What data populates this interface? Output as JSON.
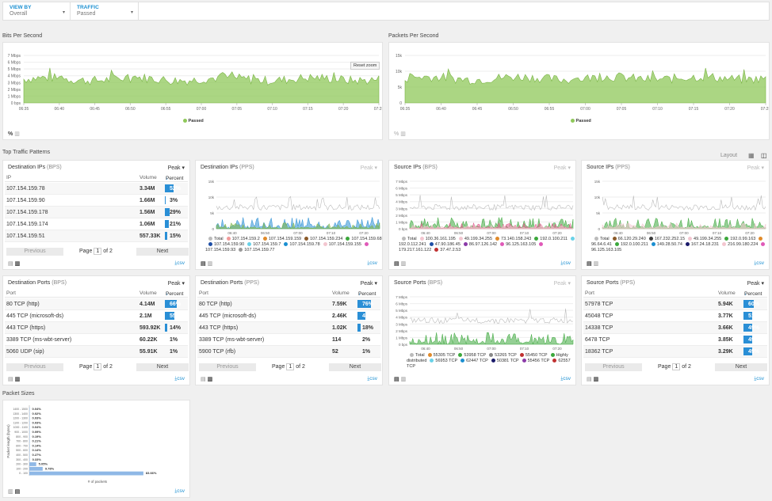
{
  "filters": [
    {
      "label": "VIEW BY",
      "value": "Overall"
    },
    {
      "label": "TRAFFIC",
      "value": "Passed"
    }
  ],
  "sections": {
    "top": "Top Traffic Patterns",
    "packet_sizes": "Packet Sizes",
    "layout": "Layout"
  },
  "bps_chart": {
    "title": "Bits Per Second",
    "y_ticks": [
      "7 Mbps",
      "6 Mbps",
      "5 Mbps",
      "4 Mbps",
      "3 Mbps",
      "2 Mbps",
      "1 Mbps",
      "0 bps"
    ],
    "x_ticks": [
      "06:35",
      "06:40",
      "06:45",
      "06:50",
      "06:55",
      "07:00",
      "07:05",
      "07:10",
      "07:15",
      "07:20",
      "07:25"
    ],
    "legend": "Passed",
    "reset": "Reset zoom",
    "color": "#8fc85a"
  },
  "pps_chart": {
    "title": "Packets Per Second",
    "y_ticks": [
      "15k",
      "10k",
      "5k",
      "0"
    ],
    "x_ticks": [
      "06:35",
      "06:40",
      "06:45",
      "06:50",
      "06:55",
      "07:00",
      "07:05",
      "07:10",
      "07:15",
      "07:20",
      "07:25"
    ],
    "legend": "Passed",
    "color": "#8fc85a"
  },
  "footer_icons": {
    "percent": "%",
    "chart": "bar-chart-icon",
    "table": "table-icon"
  },
  "csv": "csv",
  "pager": {
    "previous": "Previous",
    "next": "Next",
    "page": "Page",
    "of": "of 2",
    "current": "1"
  },
  "dest_ips_bps": {
    "title": "Destination IPs",
    "unit": "(BPS)",
    "peak": "Peak",
    "col_ip": "IP",
    "col_vol": "Volume",
    "col_pct": "Percent",
    "rows": [
      {
        "ip": "107.154.159.78",
        "vol": "3.34M",
        "pct": "52%",
        "frac": 0.52
      },
      {
        "ip": "107.154.159.90",
        "vol": "1.66M",
        "pct": "3%",
        "frac": 0.03
      },
      {
        "ip": "107.154.159.178",
        "vol": "1.56M",
        "pct": "29%",
        "frac": 0.29
      },
      {
        "ip": "107.154.159.174",
        "vol": "1.06M",
        "pct": "21%",
        "frac": 0.21
      },
      {
        "ip": "107.154.159.51",
        "vol": "557.33K",
        "pct": "15%",
        "frac": 0.15
      }
    ]
  },
  "dest_ips_pps": {
    "title": "Destination IPs",
    "unit": "(PPS)",
    "peak": "Peak",
    "y_ticks": [
      "15k",
      "10k",
      "5k",
      "0"
    ],
    "x_ticks": [
      "06:40",
      "06:50",
      "07:00",
      "07:10",
      "07:20"
    ],
    "legend": [
      "Total",
      "107.154.159.2",
      "107.154.159.159",
      "107.154.159.234",
      "107.154.159.68",
      "107.154.159.90",
      "107.154.159.7",
      "107.154.159.78",
      "107.154.159.155",
      "107.154.159.93",
      "107.154.159.77"
    ]
  },
  "src_ips_bps": {
    "title": "Source IPs",
    "unit": "(BPS)",
    "peak": "Peak",
    "y_ticks": [
      "7 Mbps",
      "6 Mbps",
      "5 Mbps",
      "4 Mbps",
      "3 Mbps",
      "2 Mbps",
      "1 Mbps",
      "0 bps"
    ],
    "x_ticks": [
      "06:40",
      "06:50",
      "07:00",
      "07:10",
      "07:20"
    ],
    "legend": [
      "Total",
      "100.36.161.195",
      "49.199.34.255",
      "73.140.158.243",
      "192.0.100.211",
      "192.0.112.241",
      "47.90.186.45",
      "86.97.126.142",
      "96.125.163.105",
      "179.217.161.122",
      "37.47.2.53"
    ]
  },
  "src_ips_pps": {
    "title": "Source IPs",
    "unit": "(PPS)",
    "peak": "Peak",
    "y_ticks": [
      "15k",
      "10k",
      "5k",
      "0"
    ],
    "x_ticks": [
      "06:40",
      "06:50",
      "07:00",
      "07:10",
      "07:20"
    ],
    "legend": [
      "Total",
      "66.120.29.240",
      "167.232.252.15",
      "49.199.34.255",
      "192.0.99.163",
      "96.64.6.41",
      "192.0.100.211",
      "149.28.50.74",
      "167.24.18.231",
      "216.99.180.224",
      "96.125.163.105"
    ]
  },
  "dest_ports_bps": {
    "title": "Destination Ports",
    "unit": "(BPS)",
    "peak": "Peak",
    "col_port": "Port",
    "col_vol": "Volume",
    "col_pct": "Percent",
    "rows": [
      {
        "port": "80 TCP (http)",
        "vol": "4.14M",
        "pct": "66%",
        "frac": 0.66
      },
      {
        "port": "445 TCP (microsoft-ds)",
        "vol": "2.1M",
        "pct": "55%",
        "frac": 0.55
      },
      {
        "port": "443 TCP (https)",
        "vol": "593.92K",
        "pct": "14%",
        "frac": 0.14
      },
      {
        "port": "3389 TCP (ms-wbt-server)",
        "vol": "60.22K",
        "pct": "1%",
        "frac": 0.0
      },
      {
        "port": "5060 UDP (sip)",
        "vol": "55.91K",
        "pct": "1%",
        "frac": 0.0
      }
    ]
  },
  "dest_ports_pps": {
    "title": "Destination Ports",
    "unit": "(PPS)",
    "peak": "Peak",
    "col_port": "Port",
    "col_vol": "Volume",
    "col_pct": "Percent",
    "rows": [
      {
        "port": "80 TCP (http)",
        "vol": "7.59K",
        "pct": "76%",
        "frac": 0.76
      },
      {
        "port": "445 TCP (microsoft-ds)",
        "vol": "2.46K",
        "pct": "47%",
        "frac": 0.47
      },
      {
        "port": "443 TCP (https)",
        "vol": "1.02K",
        "pct": "18%",
        "frac": 0.18
      },
      {
        "port": "3389 TCP (ms-wbt-server)",
        "vol": "114",
        "pct": "2%",
        "frac": 0.0
      },
      {
        "port": "5900 TCP (rfb)",
        "vol": "52",
        "pct": "1%",
        "frac": 0.0
      }
    ]
  },
  "src_ports_bps": {
    "title": "Source Ports",
    "unit": "(BPS)",
    "peak": "Peak",
    "y_ticks": [
      "7 Mbps",
      "6 Mbps",
      "5 Mbps",
      "4 Mbps",
      "3 Mbps",
      "2 Mbps",
      "1 Mbps",
      "0 bps"
    ],
    "x_ticks": [
      "06:40",
      "06:50",
      "07:00",
      "07:10",
      "07:20"
    ],
    "legend": [
      "Total",
      "55305 TCP",
      "53958 TCP",
      "53265 TCP",
      "55450 TCP",
      "Highly distributed",
      "56953 TCP",
      "62447 TCP",
      "50381 TCP",
      "55456 TCP",
      "62557 TCP"
    ]
  },
  "src_ports_pps": {
    "title": "Source Ports",
    "unit": "(PPS)",
    "peak": "Peak",
    "col_port": "Port",
    "col_vol": "Volume",
    "col_pct": "Percent",
    "rows": [
      {
        "port": "57978 TCP",
        "vol": "5.94K",
        "pct": "60%",
        "frac": 0.6
      },
      {
        "port": "45048 TCP",
        "vol": "3.77K",
        "pct": "51%",
        "frac": 0.51
      },
      {
        "port": "14338 TCP",
        "vol": "3.66K",
        "pct": "49%",
        "frac": 0.49
      },
      {
        "port": "6478 TCP",
        "vol": "3.85K",
        "pct": "49%",
        "frac": 0.49
      },
      {
        "port": "18362 TCP",
        "vol": "3.29K",
        "pct": "49%",
        "frac": 0.49
      }
    ]
  },
  "chart_data": {
    "type": "bar",
    "title": "Packet Sizes",
    "xlabel": "# of packets",
    "ylabel": "Packet length (bytes)",
    "categories": [
      "1400 - 1500",
      "1300 - 1400",
      "1200 - 1300",
      "1100 - 1200",
      "1000 - 1100",
      "900 - 1000",
      "800 - 900",
      "700 - 800",
      "600 - 700",
      "500 - 600",
      "400 - 500",
      "300 - 400",
      "200 - 300",
      "100 - 200",
      "0 - 100"
    ],
    "values": [
      0.04,
      0.02,
      0.03,
      0.03,
      0.04,
      0.09,
      0.19,
      0.21,
      0.14,
      0.14,
      0.27,
      0.33,
      5.05,
      9.78,
      83.66
    ],
    "labels": [
      "0.04%",
      "0.02%",
      "0.03%",
      "0.03%",
      "0.04%",
      "0.09%",
      "0.19%",
      "0.21%",
      "0.14%",
      "0.14%",
      "0.27%",
      "0.33%",
      "5.05%",
      "9.78%",
      "83.66%"
    ],
    "color": "#8fb8e6"
  }
}
